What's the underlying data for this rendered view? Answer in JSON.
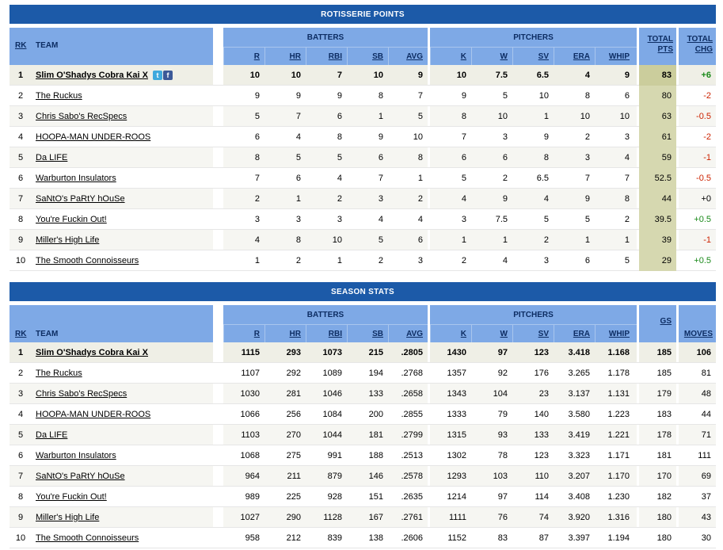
{
  "roto": {
    "title": "ROTISSERIE POINTS",
    "headers": {
      "rk": "RK",
      "team": "TEAM",
      "batters": "BATTERS",
      "pitchers": "PITCHERS",
      "bat": [
        "R",
        "HR",
        "RBI",
        "SB",
        "AVG"
      ],
      "pit": [
        "K",
        "W",
        "SV",
        "ERA",
        "WHIP"
      ],
      "total1": "TOTAL",
      "total2": "PTS",
      "chg1": "TOTAL",
      "chg2": "CHG"
    },
    "rows": [
      {
        "rk": "1",
        "team": "Slim O'Shadys Cobra Kai X",
        "bat": [
          "10",
          "10",
          "7",
          "10",
          "9"
        ],
        "pit": [
          "10",
          "7.5",
          "6.5",
          "4",
          "9"
        ],
        "total": "83",
        "chg": "+6"
      },
      {
        "rk": "2",
        "team": "The Ruckus",
        "bat": [
          "9",
          "9",
          "9",
          "8",
          "7"
        ],
        "pit": [
          "9",
          "5",
          "10",
          "8",
          "6"
        ],
        "total": "80",
        "chg": "-2"
      },
      {
        "rk": "3",
        "team": "Chris Sabo's RecSpecs",
        "bat": [
          "5",
          "7",
          "6",
          "1",
          "5"
        ],
        "pit": [
          "8",
          "10",
          "1",
          "10",
          "10"
        ],
        "total": "63",
        "chg": "-0.5"
      },
      {
        "rk": "4",
        "team": "HOOPA-MAN UNDER-ROOS",
        "bat": [
          "6",
          "4",
          "8",
          "9",
          "10"
        ],
        "pit": [
          "7",
          "3",
          "9",
          "2",
          "3"
        ],
        "total": "61",
        "chg": "-2"
      },
      {
        "rk": "5",
        "team": "Da LIFE",
        "bat": [
          "8",
          "5",
          "5",
          "6",
          "8"
        ],
        "pit": [
          "6",
          "6",
          "8",
          "3",
          "4"
        ],
        "total": "59",
        "chg": "-1"
      },
      {
        "rk": "6",
        "team": "Warburton Insulators",
        "bat": [
          "7",
          "6",
          "4",
          "7",
          "1"
        ],
        "pit": [
          "5",
          "2",
          "6.5",
          "7",
          "7"
        ],
        "total": "52.5",
        "chg": "-0.5"
      },
      {
        "rk": "7",
        "team": "SaNtO's PaRtY hOuSe",
        "bat": [
          "2",
          "1",
          "2",
          "3",
          "2"
        ],
        "pit": [
          "4",
          "9",
          "4",
          "9",
          "8"
        ],
        "total": "44",
        "chg": "+0"
      },
      {
        "rk": "8",
        "team": "You're Fuckin Out!",
        "bat": [
          "3",
          "3",
          "3",
          "4",
          "4"
        ],
        "pit": [
          "3",
          "7.5",
          "5",
          "5",
          "2"
        ],
        "total": "39.5",
        "chg": "+0.5"
      },
      {
        "rk": "9",
        "team": "Miller's High Life",
        "bat": [
          "4",
          "8",
          "10",
          "5",
          "6"
        ],
        "pit": [
          "1",
          "1",
          "2",
          "1",
          "1"
        ],
        "total": "39",
        "chg": "-1"
      },
      {
        "rk": "10",
        "team": "The Smooth Connoisseurs",
        "bat": [
          "1",
          "2",
          "1",
          "2",
          "3"
        ],
        "pit": [
          "2",
          "4",
          "3",
          "6",
          "5"
        ],
        "total": "29",
        "chg": "+0.5"
      }
    ]
  },
  "season": {
    "title": "SEASON STATS",
    "headers": {
      "rk": "RK",
      "team": "TEAM",
      "batters": "BATTERS",
      "pitchers": "PITCHERS",
      "bat": [
        "R",
        "HR",
        "RBI",
        "SB",
        "AVG"
      ],
      "pit": [
        "K",
        "W",
        "SV",
        "ERA",
        "WHIP"
      ],
      "gs": "GS",
      "moves": "MOVES"
    },
    "rows": [
      {
        "rk": "1",
        "team": "Slim O'Shadys Cobra Kai X",
        "bat": [
          "1115",
          "293",
          "1073",
          "215",
          ".2805"
        ],
        "pit": [
          "1430",
          "97",
          "123",
          "3.418",
          "1.168"
        ],
        "gs": "185",
        "moves": "106"
      },
      {
        "rk": "2",
        "team": "The Ruckus",
        "bat": [
          "1107",
          "292",
          "1089",
          "194",
          ".2768"
        ],
        "pit": [
          "1357",
          "92",
          "176",
          "3.265",
          "1.178"
        ],
        "gs": "185",
        "moves": "81"
      },
      {
        "rk": "3",
        "team": "Chris Sabo's RecSpecs",
        "bat": [
          "1030",
          "281",
          "1046",
          "133",
          ".2658"
        ],
        "pit": [
          "1343",
          "104",
          "23",
          "3.137",
          "1.131"
        ],
        "gs": "179",
        "moves": "48"
      },
      {
        "rk": "4",
        "team": "HOOPA-MAN UNDER-ROOS",
        "bat": [
          "1066",
          "256",
          "1084",
          "200",
          ".2855"
        ],
        "pit": [
          "1333",
          "79",
          "140",
          "3.580",
          "1.223"
        ],
        "gs": "183",
        "moves": "44"
      },
      {
        "rk": "5",
        "team": "Da LIFE",
        "bat": [
          "1103",
          "270",
          "1044",
          "181",
          ".2799"
        ],
        "pit": [
          "1315",
          "93",
          "133",
          "3.419",
          "1.221"
        ],
        "gs": "178",
        "moves": "71"
      },
      {
        "rk": "6",
        "team": "Warburton Insulators",
        "bat": [
          "1068",
          "275",
          "991",
          "188",
          ".2513"
        ],
        "pit": [
          "1302",
          "78",
          "123",
          "3.323",
          "1.171"
        ],
        "gs": "181",
        "moves": "111"
      },
      {
        "rk": "7",
        "team": "SaNtO's PaRtY hOuSe",
        "bat": [
          "964",
          "211",
          "879",
          "146",
          ".2578"
        ],
        "pit": [
          "1293",
          "103",
          "110",
          "3.207",
          "1.170"
        ],
        "gs": "170",
        "moves": "69"
      },
      {
        "rk": "8",
        "team": "You're Fuckin Out!",
        "bat": [
          "989",
          "225",
          "928",
          "151",
          ".2635"
        ],
        "pit": [
          "1214",
          "97",
          "114",
          "3.408",
          "1.230"
        ],
        "gs": "182",
        "moves": "37"
      },
      {
        "rk": "9",
        "team": "Miller's High Life",
        "bat": [
          "1027",
          "290",
          "1128",
          "167",
          ".2761"
        ],
        "pit": [
          "1111",
          "76",
          "74",
          "3.920",
          "1.316"
        ],
        "gs": "180",
        "moves": "43"
      },
      {
        "rk": "10",
        "team": "The Smooth Connoisseurs",
        "bat": [
          "958",
          "212",
          "839",
          "138",
          ".2606"
        ],
        "pit": [
          "1152",
          "83",
          "87",
          "3.397",
          "1.194"
        ],
        "gs": "180",
        "moves": "30"
      }
    ]
  },
  "icons": {
    "twitter": "twitter-icon",
    "facebook": "facebook-icon"
  },
  "colors": {
    "title_bar": "#1c5aa8",
    "header": "#7ea9e6",
    "total_pts": "#d6d8b0",
    "positive": "#1a8a1a",
    "negative": "#cc2200"
  }
}
